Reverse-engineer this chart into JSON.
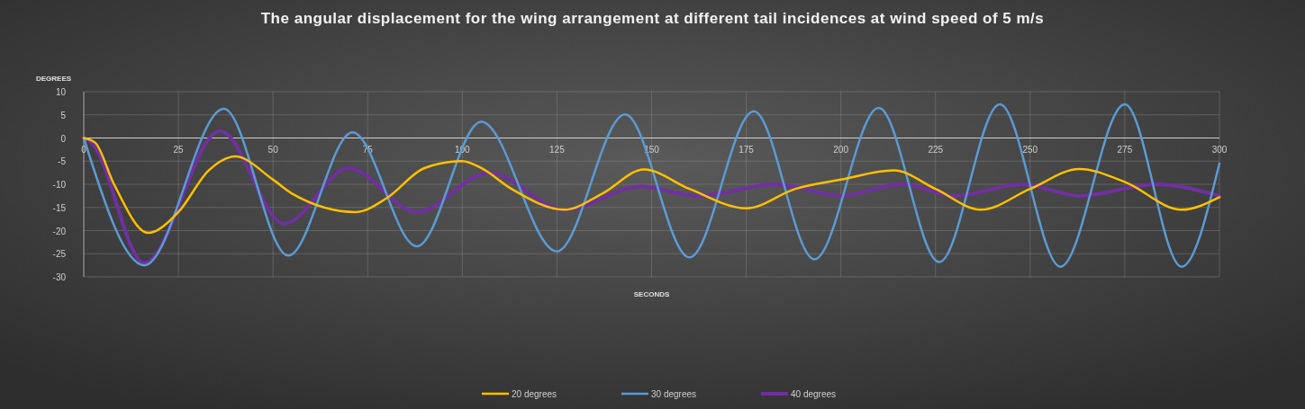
{
  "chart_data": {
    "type": "line",
    "title": "The angular displacement for the wing arrangement at different tail incidences at wind speed of 5 m/s",
    "xlabel": "SECONDS",
    "ylabel": "DEGREES",
    "xlim": [
      0,
      300
    ],
    "xticks": [
      0,
      25,
      50,
      75,
      100,
      125,
      150,
      175,
      200,
      225,
      250,
      275,
      300
    ],
    "ylim": [
      -30,
      10
    ],
    "yticks": [
      -30,
      -25,
      -20,
      -15,
      -10,
      -5,
      0,
      5,
      10
    ],
    "grid": true,
    "legend": "bottom",
    "marker": "none",
    "line_style": "solid",
    "series": [
      {
        "name": "20 degrees",
        "color": "#ffc000",
        "x": [
          0,
          3,
          8,
          17,
          25,
          33,
          40,
          50,
          55,
          72,
          80,
          90,
          100,
          105,
          113,
          127,
          137,
          148,
          160,
          175,
          188,
          200,
          214,
          225,
          237,
          250,
          263,
          275,
          290,
          300
        ],
        "values": [
          0,
          -1,
          -10,
          -20.5,
          -16,
          -7,
          -4,
          -9,
          -12,
          -16,
          -13,
          -6.5,
          -5,
          -6.5,
          -11,
          -15.5,
          -12,
          -6.8,
          -11,
          -15.2,
          -11,
          -9,
          -7,
          -11,
          -15.5,
          -11,
          -6.7,
          -9.5,
          -15.5,
          -12.8
        ]
      },
      {
        "name": "30 degrees",
        "color": "#5b9bd5",
        "x": [
          0,
          16,
          37,
          54,
          71,
          88,
          105,
          125,
          143,
          160,
          177,
          193,
          210,
          226,
          242,
          258,
          275,
          290,
          300
        ],
        "values": [
          0,
          -27.5,
          6.3,
          -25.4,
          1.2,
          -23.4,
          3.5,
          -24.5,
          5.1,
          -25.8,
          5.8,
          -26.2,
          6.5,
          -26.8,
          7.3,
          -27.8,
          7.3,
          -27.8,
          -5.5
        ]
      },
      {
        "name": "40 degrees",
        "color": "#7030a0",
        "x": [
          0,
          2,
          16,
          36,
          53,
          70,
          88,
          107,
          127,
          147,
          162,
          183,
          200,
          216,
          230,
          248,
          263,
          283,
          300
        ],
        "values": [
          0,
          -1,
          -27,
          1.5,
          -18.5,
          -6.5,
          -16,
          -7.5,
          -15.5,
          -10.5,
          -12.5,
          -10,
          -12.5,
          -10,
          -12.5,
          -10,
          -12.5,
          -10,
          -12.5
        ]
      }
    ]
  }
}
